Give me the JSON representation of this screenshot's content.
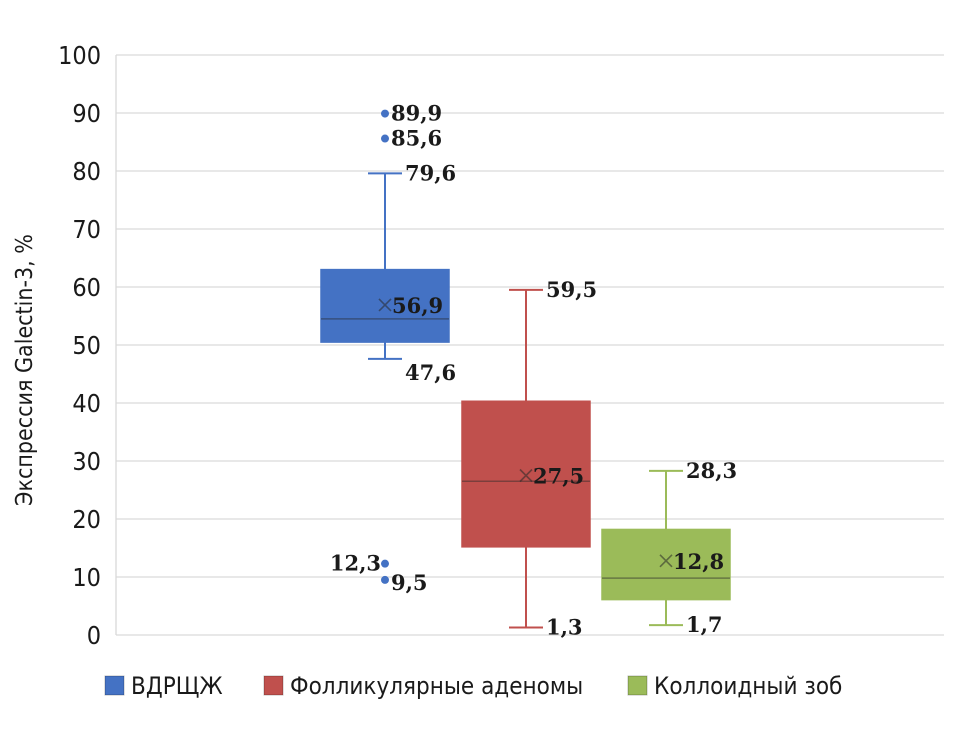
{
  "chart_data": {
    "type": "box",
    "title": "",
    "xlabel": "",
    "ylabel": "Экспрессия Galectin-3, %",
    "ylim": [
      0,
      100
    ],
    "y_ticks": [
      0,
      10,
      20,
      30,
      40,
      50,
      60,
      70,
      80,
      90,
      100
    ],
    "grid": true,
    "legend_position": "bottom",
    "series": [
      {
        "name": "ВДРЩЖ",
        "color": "#4472c4",
        "whisker_low": 47.6,
        "q1": 50.5,
        "median": 54.5,
        "q3": 63.0,
        "whisker_high": 79.6,
        "mean": 56.9,
        "outliers": [
          89.9,
          85.6,
          12.3,
          9.5
        ],
        "labels": {
          "whisker_high": "79,6",
          "whisker_low": "47,6",
          "mean": "56,9",
          "outliers": [
            "89,9",
            "85,6",
            "12,3",
            "9,5"
          ]
        }
      },
      {
        "name": "Фолликулярные аденомы",
        "color": "#c0504d",
        "whisker_low": 1.3,
        "q1": 15.2,
        "median": 26.5,
        "q3": 40.3,
        "whisker_high": 59.5,
        "mean": 27.5,
        "outliers": [],
        "labels": {
          "whisker_high": "59,5",
          "whisker_low": "1,3",
          "mean": "27,5",
          "outliers": []
        }
      },
      {
        "name": "Коллоидный зоб",
        "color": "#9bbb59",
        "whisker_low": 1.7,
        "q1": 6.1,
        "median": 9.8,
        "q3": 18.2,
        "whisker_high": 28.3,
        "mean": 12.8,
        "outliers": [],
        "labels": {
          "whisker_high": "28,3",
          "whisker_low": "1,7",
          "mean": "12,8",
          "outliers": []
        }
      }
    ]
  }
}
